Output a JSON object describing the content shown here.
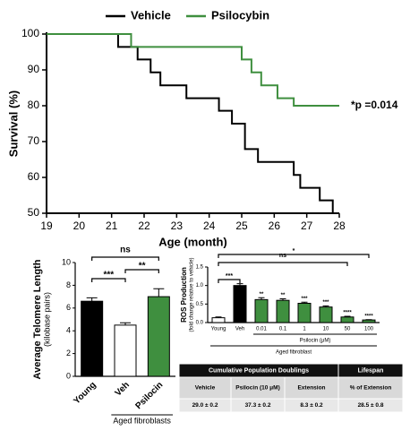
{
  "chart_data": [
    {
      "type": "step",
      "xlabel": "Age (month)",
      "ylabel": "Survival (%)",
      "xlim": [
        19,
        28
      ],
      "ylim": [
        50,
        100
      ],
      "xticks": [
        19,
        20,
        21,
        22,
        23,
        24,
        25,
        26,
        27,
        28
      ],
      "yticks": [
        50,
        60,
        70,
        80,
        90,
        100
      ],
      "annotation": "*p =0.014",
      "series": [
        {
          "name": "Vehicle",
          "color": "#000000",
          "x": [
            19,
            21.2,
            21.8,
            22.2,
            22.5,
            23.3,
            24.3,
            24.7,
            25.1,
            25.5,
            26.6,
            26.8,
            27.4,
            27.8
          ],
          "values": [
            100,
            96.4,
            92.9,
            89.3,
            85.7,
            82.1,
            78.6,
            75,
            67.9,
            64.3,
            60.7,
            57.1,
            53.6,
            50
          ]
        },
        {
          "name": "Psilocybin",
          "color": "#3f8f3f",
          "x": [
            19,
            21.6,
            25,
            25.3,
            25.6,
            26.1,
            26.6,
            28
          ],
          "values": [
            100,
            96.4,
            92.9,
            89.3,
            85.7,
            82.1,
            80,
            80
          ]
        }
      ]
    },
    {
      "type": "bar",
      "ylabel": "Average Telomere Length",
      "ylabel_sub": "(kilobase pairs)",
      "categories": [
        "Young",
        "Veh",
        "Psilocin"
      ],
      "values": [
        6.6,
        4.5,
        7.0
      ],
      "errors": [
        0.3,
        0.2,
        0.7
      ],
      "colors": [
        "#000000",
        "#ffffff",
        "#3f8f3f"
      ],
      "ylim": [
        0,
        10
      ],
      "yticks": [
        0,
        2,
        4,
        6,
        8,
        10
      ],
      "annotations": [
        "ns",
        "***",
        "**"
      ],
      "group_label": "Aged fibroblasts"
    },
    {
      "type": "bar",
      "ylabel": "ROS Production",
      "ylabel_sub": "(fold change relative to vehicle)",
      "categories": [
        "Young",
        "Veh",
        "0.01",
        "0.1",
        "1",
        "10",
        "50",
        "100"
      ],
      "values": [
        0.13,
        1.0,
        0.62,
        0.6,
        0.52,
        0.42,
        0.15,
        0.07
      ],
      "errors": [
        0.02,
        0.05,
        0.05,
        0.04,
        0.03,
        0.03,
        0.02,
        0.01
      ],
      "colors": [
        "#ffffff",
        "#000000",
        "#3f8f3f",
        "#3f8f3f",
        "#3f8f3f",
        "#3f8f3f",
        "#3f8f3f",
        "#3f8f3f"
      ],
      "ylim": [
        0,
        1.5
      ],
      "yticks": [
        {
          "value": 0,
          "label": "0.0"
        },
        0.5,
        {
          "value": 1,
          "label": "1.0"
        },
        1.5
      ],
      "bar_labels": [
        null,
        null,
        "**",
        "**",
        "***",
        "***",
        "****",
        "****"
      ],
      "annotations": [
        "***",
        "ns",
        "*"
      ],
      "dose_label": "Psilocin (μM)",
      "group_label": "Aged fibroblast"
    }
  ],
  "table": {
    "rows": [
      [
        "Cumulative Population Doublings",
        "Lifespan"
      ],
      [
        "Vehicle",
        "Psilocin (10 μM)",
        "Extension",
        "% of Extension"
      ],
      [
        "29.0 ± 0.2",
        "37.3 ± 0.2",
        "8.3 ± 0.2",
        "28.5 ± 0.8"
      ]
    ]
  }
}
